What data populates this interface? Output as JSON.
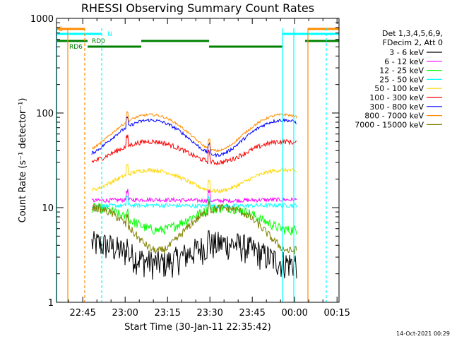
{
  "chart_data": {
    "type": "line",
    "title": "RHESSI Observing Summary Count Rates",
    "xlabel": "Start Time (30-Jan-11 22:35:42)",
    "ylabel": "Count Rate (s⁻¹ detector⁻¹)",
    "y_scale": "log",
    "ylim": [
      1,
      1000
    ],
    "xlim_minutes": [
      0,
      100
    ],
    "x_tick_labels": [
      "22:45",
      "23:00",
      "23:15",
      "23:30",
      "23:45",
      "00:00",
      "00:15"
    ],
    "x_tick_minutes": [
      9.3,
      24.3,
      39.3,
      54.3,
      69.3,
      84.3,
      99.3
    ],
    "y_tick_labels": [
      "1",
      "10",
      "100",
      "1000"
    ],
    "y_tick_values": [
      1,
      10,
      100,
      1000
    ],
    "legend_header": [
      "Det 1,3,4,5,6,9,",
      "FDecim 2, Att 0"
    ],
    "legend_placement": "right",
    "timestamp": "14-Oct-2021 00:29",
    "flag_labels": {
      "saa": "S",
      "night": "N",
      "rd0": "RD0",
      "rd6": "RD6"
    },
    "gaps_minutes": [
      [
        0,
        12.5
      ],
      [
        85,
        100
      ]
    ],
    "segment_breaks": [
      25,
      54
    ],
    "series": [
      {
        "name": "3 - 6 keV",
        "color": "#000000",
        "shape": "dip",
        "base": 4.2,
        "amp": 1.6,
        "noise": 0.35
      },
      {
        "name": "6 - 12 keV",
        "color": "#ff00ff",
        "shape": "flat",
        "base": 12,
        "amp": 0.5,
        "noise": 0.05
      },
      {
        "name": "12 - 25 keV",
        "color": "#00ff00",
        "shape": "dip",
        "base": 10,
        "amp": 4.2,
        "noise": 0.12
      },
      {
        "name": "25 - 50 keV",
        "color": "#00ffff",
        "shape": "flat",
        "base": 10.5,
        "amp": 0.3,
        "noise": 0.05
      },
      {
        "name": "50 - 100 keV",
        "color": "#ffd700",
        "shape": "arch",
        "base": 20,
        "amp": 5,
        "noise": 0.05
      },
      {
        "name": "100 - 300 keV",
        "color": "#ff0000",
        "shape": "arch",
        "base": 40,
        "amp": 10,
        "noise": 0.06
      },
      {
        "name": "300 - 800 keV",
        "color": "#0000ff",
        "shape": "arch",
        "base": 60,
        "amp": 24,
        "noise": 0.04
      },
      {
        "name": "800 - 7000 keV",
        "color": "#ff8c00",
        "shape": "arch",
        "base": 68,
        "amp": 28,
        "noise": 0.03
      },
      {
        "name": "7000 - 15000 keV",
        "color": "#808000",
        "shape": "dip",
        "base": 10,
        "amp": 6.5,
        "noise": 0.1
      }
    ]
  }
}
